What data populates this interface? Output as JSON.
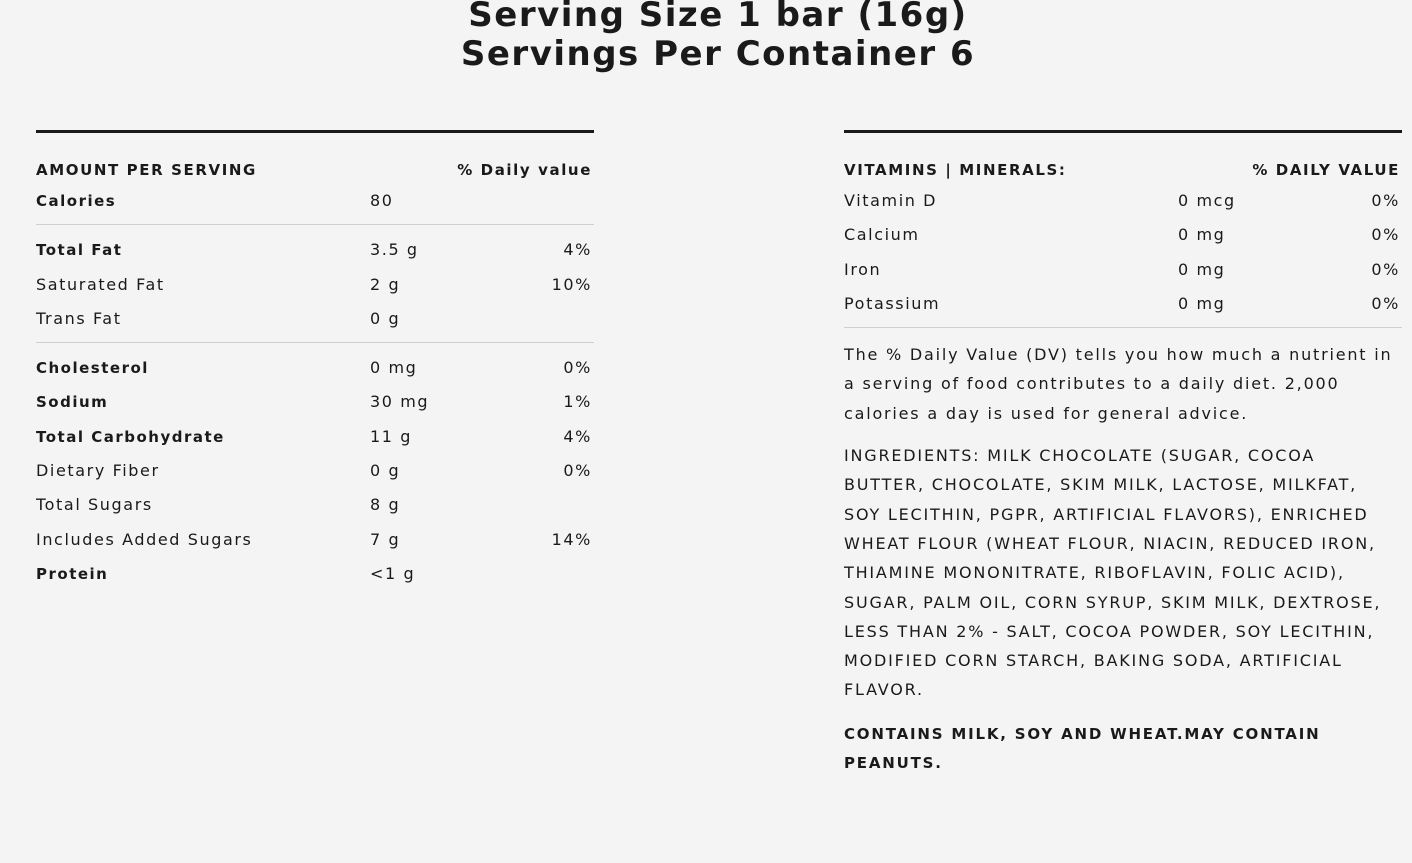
{
  "header": {
    "serving_size": "Serving Size 1 bar (16g)",
    "servings_per_container": "Servings Per Container 6"
  },
  "nutrition": {
    "col_label": "AMOUNT PER SERVING",
    "col_dv_label": "% Daily value",
    "calories": {
      "name": "Calories",
      "amount": "80"
    },
    "group1": [
      {
        "name": "Total Fat",
        "amount": "3.5 g",
        "dv": "4%",
        "bold": true
      },
      {
        "name": "Saturated Fat",
        "amount": "2 g",
        "dv": "10%",
        "bold": false
      },
      {
        "name": "Trans Fat",
        "amount": "0 g",
        "dv": "",
        "bold": false
      }
    ],
    "group2": [
      {
        "name": "Cholesterol",
        "amount": "0 mg",
        "dv": "0%",
        "bold": true
      },
      {
        "name": "Sodium",
        "amount": "30 mg",
        "dv": "1%",
        "bold": true
      },
      {
        "name": "Total Carbohydrate",
        "amount": "11 g",
        "dv": "4%",
        "bold": true
      },
      {
        "name": "Dietary Fiber",
        "amount": "0 g",
        "dv": "0%",
        "bold": false
      },
      {
        "name": "Total Sugars",
        "amount": "8 g",
        "dv": "",
        "bold": false
      },
      {
        "name": "Includes Added Sugars",
        "amount": "7 g",
        "dv": "14%",
        "bold": false
      },
      {
        "name": "Protein",
        "amount": "<1 g",
        "dv": "",
        "bold": true
      }
    ]
  },
  "vitamins": {
    "col_label": "VITAMINS | MINERALS:",
    "col_dv_label": "% DAILY VALUE",
    "items": [
      {
        "name": "Vitamin D",
        "amount": "0 mcg",
        "dv": "0%"
      },
      {
        "name": "Calcium",
        "amount": "0 mg",
        "dv": "0%"
      },
      {
        "name": "Iron",
        "amount": "0 mg",
        "dv": "0%"
      },
      {
        "name": "Potassium",
        "amount": "0 mg",
        "dv": "0%"
      }
    ]
  },
  "dv_note": "The % Daily Value (DV) tells you how much a nutrient in a serving of food contributes to a daily diet. 2,000 calories a day is used for general advice.",
  "ingredients": "INGREDIENTS: MILK CHOCOLATE (SUGAR, COCOA BUTTER, CHOCOLATE, SKIM MILK, LACTOSE, MILKFAT, SOY LECITHIN, PGPR, ARTIFICIAL FLAVORS), ENRICHED WHEAT FLOUR (WHEAT FLOUR, NIACIN, REDUCED IRON, THIAMINE MONONITRATE, RIBOFLAVIN, FOLIC ACID), SUGAR, PALM OIL, CORN SYRUP, SKIM MILK, DEXTROSE, LESS THAN 2% - SALT, COCOA POWDER, SOY LECITHIN, MODIFIED CORN STARCH, BAKING SODA, ARTIFICIAL FLAVOR.",
  "allergens": "CONTAINS MILK, SOY AND WHEAT.MAY CONTAIN PEANUTS."
}
